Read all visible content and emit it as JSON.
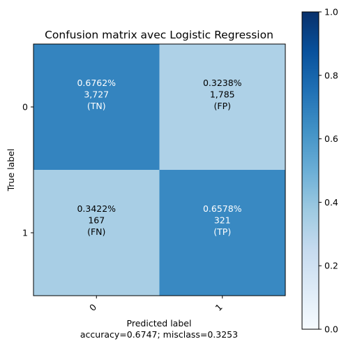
{
  "chart_data": {
    "type": "heatmap",
    "title": "Confusion matrix avec Logistic Regression",
    "xlabel": "Predicted label",
    "xlabel_sub": "accuracy=0.6747; misclass=0.3253",
    "ylabel": "True label",
    "x_tick_labels": [
      "0",
      "1"
    ],
    "y_tick_labels": [
      "0",
      "1"
    ],
    "cells": [
      [
        {
          "value": 0.6762,
          "percent": "0.6762%",
          "count": "3,727",
          "tag": "(TN)"
        },
        {
          "value": 0.3238,
          "percent": "0.3238%",
          "count": "1,785",
          "tag": "(FP)"
        }
      ],
      [
        {
          "value": 0.3422,
          "percent": "0.3422%",
          "count": "167",
          "tag": "(FN)"
        },
        {
          "value": 0.6578,
          "percent": "0.6578%",
          "count": "321",
          "tag": "(TP)"
        }
      ]
    ],
    "colorscale": "Blues",
    "colorbar_range": [
      0,
      1
    ],
    "colorbar_ticks": [
      "0.0",
      "0.2",
      "0.4",
      "0.6",
      "0.8",
      "1.0"
    ],
    "colorbar_values": [
      0.0,
      0.2,
      0.4,
      0.6,
      0.8,
      1.0
    ]
  }
}
